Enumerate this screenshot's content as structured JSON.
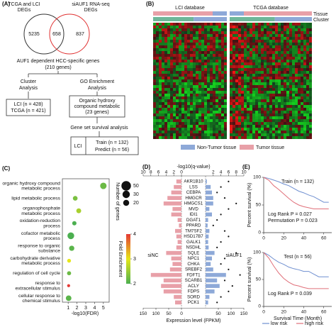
{
  "diagram": {
    "panel": "(A)",
    "venn": {
      "left_label": [
        "TCGA and LCI",
        "DEGs"
      ],
      "right_label": [
        "siAUF1 RNA-seq",
        "DEGs"
      ],
      "left_only": 5235,
      "overlap": 658,
      "right_only": 837
    },
    "gene_set": [
      "AUF1 dependent HCC-specific genes",
      "(210 genes)"
    ],
    "cluster": [
      "Cluster",
      "Analysis"
    ],
    "cluster_result": [
      "LCI (n = 428)",
      "TCGA (n = 421)"
    ],
    "go": [
      "GO Enrichment",
      "Analysis"
    ],
    "go_result": [
      "Organic hydroxy",
      "compound metabolic",
      "(23 genes)"
    ],
    "survival": "Gene set survival analysis",
    "survival_box": {
      "label": "LCI",
      "lines": [
        "Train (n = 132)",
        "Predict (n = 56)"
      ]
    }
  },
  "heatmap": {
    "panel": "(B)",
    "databases": [
      "LCI database",
      "TCGA database"
    ],
    "row_labels": [
      "Tissue",
      "Cluster"
    ],
    "legend": [
      {
        "name": "Non-Tumor tissue",
        "color": "#8ea9d8"
      },
      {
        "name": "Tumor tissue",
        "color": "#e8a0a8"
      }
    ]
  },
  "chart_data": [
    {
      "type": "bubble",
      "panel": "(C)",
      "categories": [
        "organic hydroxy compound metabolic process",
        "lipid metabolic process",
        "organophosphate metabolic process",
        "oxidation-reduction process",
        "cofactor metabolic process",
        "response to organic substance",
        "carbohydrate derivative metabolic process",
        "regulation of cell cycle",
        "response to extracellular stimulus",
        "cellular response to chemical stimulus"
      ],
      "label_colors": [
        "#000",
        "#888",
        "#000",
        "#888",
        "#000",
        "#000",
        "#888",
        "#000",
        "#888",
        "#000"
      ],
      "x": [
        5.0,
        1.8,
        2.2,
        1.7,
        1.3,
        1.4,
        1.1,
        1.1,
        1.05,
        1.05
      ],
      "sizes": [
        23,
        12,
        13,
        10,
        25,
        15,
        8,
        9,
        5,
        17
      ],
      "color_values": [
        2.2,
        2.3,
        2.6,
        2.0,
        2.0,
        2.1,
        3.0,
        2.2,
        4.0,
        2.1
      ],
      "xlabel": "-log10(FDR)",
      "xlim": [
        0.5,
        5.5
      ],
      "xticks": [
        1,
        2,
        3,
        4,
        5
      ],
      "size_legend": {
        "title": "Number of genes",
        "values": [
          50,
          30,
          20
        ]
      },
      "color_legend": {
        "title": "Fold Enrichment",
        "ticks": [
          2,
          3,
          4
        ],
        "colors": [
          "#4caf50",
          "#e6e619",
          "#e53935"
        ]
      }
    },
    {
      "type": "butterfly",
      "panel": "(D)",
      "categories": [
        "AKR1B10",
        "LSS",
        "CEBPA",
        "HMGCR",
        "HMGCS1",
        "MVD",
        "IDI1",
        "DGAT1",
        "PPARD",
        "TM7SF2",
        "HSD17B7",
        "GALK1",
        "NSDHL",
        "SQLE",
        "NPC1",
        "CHKA",
        "SREBF2",
        "FDFT1",
        "SCARB1",
        "ACLY",
        "FDPS",
        "SORD",
        "PCK1"
      ],
      "series": [
        {
          "name": "siNC",
          "color": "#e8a0a8",
          "values": [
            20,
            30,
            40,
            55,
            70,
            35,
            40,
            15,
            10,
            25,
            20,
            15,
            20,
            60,
            40,
            35,
            45,
            120,
            70,
            80,
            70,
            30,
            25
          ]
        },
        {
          "name": "siAUF1",
          "color": "#8ea9d8",
          "values": [
            5,
            20,
            25,
            30,
            30,
            15,
            25,
            10,
            8,
            15,
            12,
            10,
            12,
            35,
            25,
            20,
            30,
            80,
            45,
            55,
            35,
            15,
            10
          ]
        }
      ],
      "q_values": [
        6,
        4,
        3,
        5,
        8,
        6,
        4,
        3,
        2,
        5,
        6,
        4,
        3,
        8,
        5,
        4,
        6,
        9,
        5,
        7,
        6,
        4,
        3
      ],
      "xlabel": "Expression level (FPKM)",
      "x2label": "-log10(q-value)",
      "xlim": [
        0,
        150
      ],
      "xticks_left": [
        150,
        100,
        50,
        0
      ],
      "xticks_right": [
        50,
        100,
        150
      ],
      "x2lim": [
        0,
        10
      ],
      "x2ticks_left": [
        10,
        8,
        6,
        4,
        2,
        0
      ],
      "x2ticks_right": [
        2,
        4,
        6,
        8,
        10
      ]
    },
    {
      "type": "line",
      "panel": "(E)",
      "annotations": [
        "Train (n = 132)",
        "Log Rank P = 0.027",
        "Permutation P = 0.023"
      ],
      "ylabel": "Percent survival (%)",
      "x": [
        0,
        5,
        10,
        15,
        20,
        25,
        30,
        35,
        40,
        45,
        50,
        55,
        60,
        65
      ],
      "series": [
        {
          "color": "#6f8fd0",
          "values": [
            100,
            98,
            95,
            92,
            88,
            85,
            80,
            75,
            72,
            68,
            65,
            60,
            55,
            55
          ]
        },
        {
          "color": "#e0707a",
          "values": [
            100,
            95,
            85,
            78,
            70,
            62,
            55,
            50,
            47,
            45,
            43,
            43,
            43,
            43
          ]
        }
      ],
      "xlim": [
        0,
        68
      ],
      "xticks": [
        0,
        20,
        40,
        60
      ],
      "ylim": [
        0,
        100
      ],
      "yticks": [
        0,
        50,
        100
      ]
    },
    {
      "type": "line",
      "annotations": [
        "Test (n = 56)",
        "Log Rank P = 0.039"
      ],
      "ylabel": "Percent survival (%)",
      "xlabel": "Survival Time (Month)",
      "x": [
        0,
        5,
        10,
        15,
        20,
        25,
        30,
        35,
        40,
        45,
        50,
        55,
        60,
        65
      ],
      "series": [
        {
          "name": "low risk",
          "color": "#6f8fd0",
          "values": [
            100,
            95,
            88,
            82,
            78,
            73,
            70,
            68,
            65,
            65,
            60,
            55,
            55,
            55
          ]
        },
        {
          "name": "high risk",
          "color": "#e0707a",
          "values": [
            100,
            90,
            75,
            62,
            52,
            45,
            40,
            38,
            35,
            33,
            33,
            33,
            33,
            33
          ]
        }
      ],
      "xlim": [
        0,
        68
      ],
      "xticks": [
        0,
        20,
        40,
        60
      ],
      "ylim": [
        0,
        100
      ],
      "yticks": [
        0,
        50,
        100
      ],
      "legend": "bottom"
    }
  ]
}
